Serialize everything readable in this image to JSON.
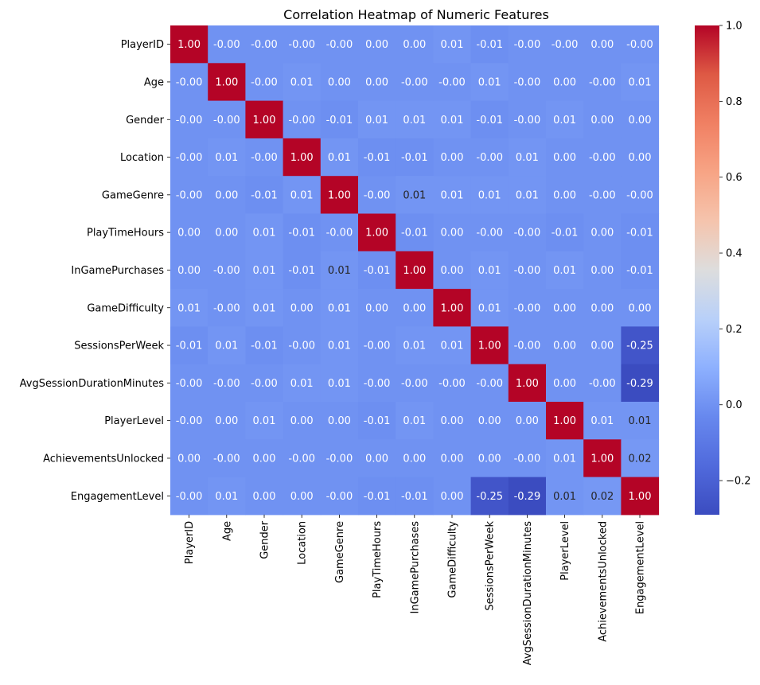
{
  "chart_data": {
    "type": "heatmap",
    "title": "Correlation Heatmap of Numeric Features",
    "xlabel": "",
    "ylabel": "",
    "labels": [
      "PlayerID",
      "Age",
      "Gender",
      "Location",
      "GameGenre",
      "PlayTimeHours",
      "InGamePurchases",
      "GameDifficulty",
      "SessionsPerWeek",
      "AvgSessionDurationMinutes",
      "PlayerLevel",
      "AchievementsUnlocked",
      "EngagementLevel"
    ],
    "values": [
      [
        1.0,
        -0.0,
        -0.0,
        -0.0,
        -0.0,
        0.0,
        0.0,
        0.01,
        -0.01,
        -0.0,
        -0.0,
        0.0,
        -0.0
      ],
      [
        -0.0,
        1.0,
        -0.0,
        0.01,
        0.0,
        0.0,
        -0.0,
        -0.0,
        0.01,
        -0.0,
        0.0,
        -0.0,
        0.01
      ],
      [
        -0.0,
        -0.0,
        1.0,
        -0.0,
        -0.01,
        0.01,
        0.01,
        0.01,
        -0.01,
        -0.0,
        0.01,
        0.0,
        0.0
      ],
      [
        -0.0,
        0.01,
        -0.0,
        1.0,
        0.01,
        -0.01,
        -0.01,
        0.0,
        -0.0,
        0.01,
        0.0,
        -0.0,
        0.0
      ],
      [
        -0.0,
        0.0,
        -0.01,
        0.01,
        1.0,
        -0.0,
        0.01,
        0.01,
        0.01,
        0.01,
        0.0,
        -0.0,
        -0.0
      ],
      [
        0.0,
        0.0,
        0.01,
        -0.01,
        -0.0,
        1.0,
        -0.01,
        0.0,
        -0.0,
        -0.0,
        -0.01,
        0.0,
        -0.01
      ],
      [
        0.0,
        -0.0,
        0.01,
        -0.01,
        0.01,
        -0.01,
        1.0,
        0.0,
        0.01,
        -0.0,
        0.01,
        0.0,
        -0.01
      ],
      [
        0.01,
        -0.0,
        0.01,
        0.0,
        0.01,
        0.0,
        0.0,
        1.0,
        0.01,
        -0.0,
        0.0,
        0.0,
        0.0
      ],
      [
        -0.01,
        0.01,
        -0.01,
        -0.0,
        0.01,
        -0.0,
        0.01,
        0.01,
        1.0,
        -0.0,
        0.0,
        0.0,
        -0.25
      ],
      [
        -0.0,
        -0.0,
        -0.0,
        0.01,
        0.01,
        -0.0,
        -0.0,
        -0.0,
        -0.0,
        1.0,
        0.0,
        -0.0,
        -0.29
      ],
      [
        -0.0,
        0.0,
        0.01,
        0.0,
        0.0,
        -0.01,
        0.01,
        0.0,
        0.0,
        0.0,
        1.0,
        0.01,
        0.01
      ],
      [
        0.0,
        -0.0,
        0.0,
        -0.0,
        -0.0,
        0.0,
        0.0,
        0.0,
        0.0,
        -0.0,
        0.01,
        1.0,
        0.02
      ],
      [
        -0.0,
        0.01,
        0.0,
        0.0,
        -0.0,
        -0.01,
        -0.01,
        0.0,
        -0.25,
        -0.29,
        0.01,
        0.02,
        1.0
      ]
    ],
    "cell_labels": [
      [
        "1.00",
        "-0.00",
        "-0.00",
        "-0.00",
        "-0.00",
        "0.00",
        "0.00",
        "0.01",
        "-0.01",
        "-0.00",
        "-0.00",
        "0.00",
        "-0.00"
      ],
      [
        "-0.00",
        "1.00",
        "-0.00",
        "0.01",
        "0.00",
        "0.00",
        "-0.00",
        "-0.00",
        "0.01",
        "-0.00",
        "0.00",
        "-0.00",
        "0.01"
      ],
      [
        "-0.00",
        "-0.00",
        "1.00",
        "-0.00",
        "-0.01",
        "0.01",
        "0.01",
        "0.01",
        "-0.01",
        "-0.00",
        "0.01",
        "0.00",
        "0.00"
      ],
      [
        "-0.00",
        "0.01",
        "-0.00",
        "1.00",
        "0.01",
        "-0.01",
        "-0.01",
        "0.00",
        "-0.00",
        "0.01",
        "0.00",
        "-0.00",
        "0.00"
      ],
      [
        "-0.00",
        "0.00",
        "-0.01",
        "0.01",
        "1.00",
        "-0.00",
        "0.01",
        "0.01",
        "0.01",
        "0.01",
        "0.00",
        "-0.00",
        "-0.00"
      ],
      [
        "0.00",
        "0.00",
        "0.01",
        "-0.01",
        "-0.00",
        "1.00",
        "-0.01",
        "0.00",
        "-0.00",
        "-0.00",
        "-0.01",
        "0.00",
        "-0.01"
      ],
      [
        "0.00",
        "-0.00",
        "0.01",
        "-0.01",
        "0.01",
        "-0.01",
        "1.00",
        "0.00",
        "0.01",
        "-0.00",
        "0.01",
        "0.00",
        "-0.01"
      ],
      [
        "0.01",
        "-0.00",
        "0.01",
        "0.00",
        "0.01",
        "0.00",
        "0.00",
        "1.00",
        "0.01",
        "-0.00",
        "0.00",
        "0.00",
        "0.00"
      ],
      [
        "-0.01",
        "0.01",
        "-0.01",
        "-0.00",
        "0.01",
        "-0.00",
        "0.01",
        "0.01",
        "1.00",
        "-0.00",
        "0.00",
        "0.00",
        "-0.25"
      ],
      [
        "-0.00",
        "-0.00",
        "-0.00",
        "0.01",
        "0.01",
        "-0.00",
        "-0.00",
        "-0.00",
        "-0.00",
        "1.00",
        "0.00",
        "-0.00",
        "-0.29"
      ],
      [
        "-0.00",
        "0.00",
        "0.01",
        "0.00",
        "0.00",
        "-0.01",
        "0.01",
        "0.00",
        "0.00",
        "0.00",
        "1.00",
        "0.01",
        "0.01"
      ],
      [
        "0.00",
        "-0.00",
        "0.00",
        "-0.00",
        "-0.00",
        "0.00",
        "0.00",
        "0.00",
        "0.00",
        "-0.00",
        "0.01",
        "1.00",
        "0.02"
      ],
      [
        "-0.00",
        "0.01",
        "0.00",
        "0.00",
        "-0.00",
        "-0.01",
        "-0.01",
        "0.00",
        "-0.25",
        "-0.29",
        "0.01",
        "0.02",
        "1.00"
      ]
    ],
    "dark_text_cells": [
      [
        4,
        6
      ],
      [
        6,
        4
      ],
      [
        10,
        12
      ],
      [
        11,
        12
      ],
      [
        12,
        10
      ],
      [
        12,
        11
      ]
    ],
    "colormap": "coolwarm",
    "colorbar": {
      "min": -0.29,
      "max": 1.0,
      "ticks": [
        1.0,
        0.8,
        0.6,
        0.4,
        0.2,
        0.0,
        -0.2
      ],
      "tick_labels": [
        "1.0",
        "0.8",
        "0.6",
        "0.4",
        "0.2",
        "0.0",
        "−0.2"
      ]
    },
    "grid": false,
    "legend": "colorbar-right"
  }
}
